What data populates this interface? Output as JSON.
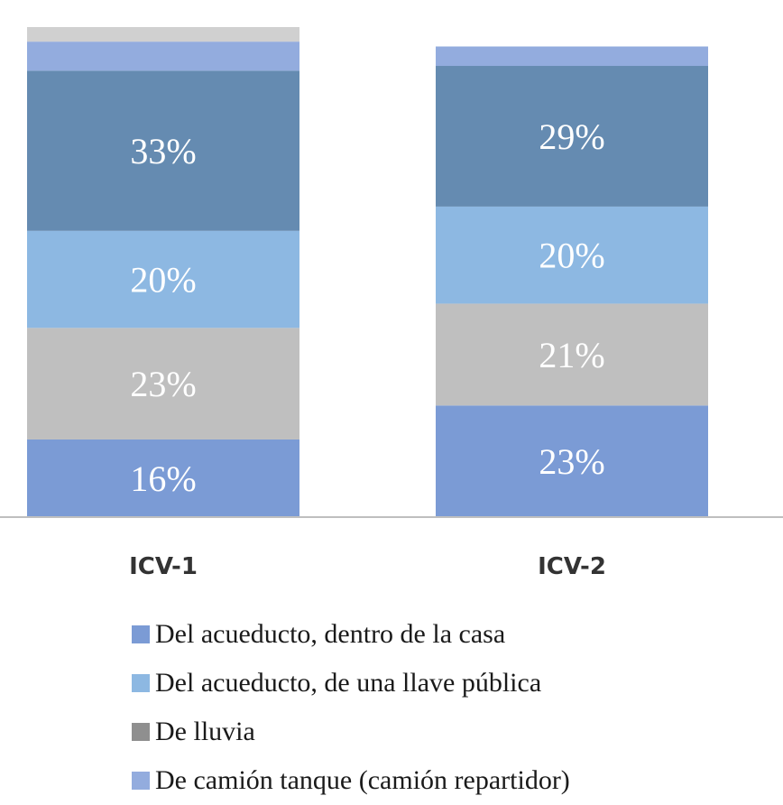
{
  "chart_data": {
    "type": "bar",
    "stacked": true,
    "categories": [
      "ICV-1",
      "ICV-2"
    ],
    "series": [
      {
        "color": "#7b9bd5",
        "values": [
          16,
          23
        ],
        "labels": [
          "16%",
          "23%"
        ]
      },
      {
        "color": "#bfbfbf",
        "values": [
          23,
          21
        ],
        "labels": [
          "23%",
          "21%"
        ]
      },
      {
        "color": "#8db8e2",
        "values": [
          20,
          20
        ],
        "labels": [
          "20%",
          "20%"
        ]
      },
      {
        "color": "#658bb1",
        "values": [
          33,
          29
        ],
        "labels": [
          "33%",
          "29%"
        ]
      },
      {
        "color": "#93acde",
        "values": [
          6,
          4
        ],
        "labels": [
          "",
          ""
        ]
      },
      {
        "color": "#d0d0d0",
        "values": [
          3,
          0
        ],
        "labels": [
          "",
          ""
        ]
      }
    ],
    "ylim": [
      0,
      101
    ],
    "grid": false,
    "legend_position": "bottom"
  },
  "legend": [
    {
      "label": "Del acueducto, dentro de la casa",
      "color": "#7b9bd5"
    },
    {
      "label": "Del acueducto, de una llave pública",
      "color": "#8db8e2"
    },
    {
      "label": "De lluvia",
      "color": "#8f8f8f"
    },
    {
      "label": "De camión tanque (camión repartidor)",
      "color": "#93acde"
    }
  ]
}
